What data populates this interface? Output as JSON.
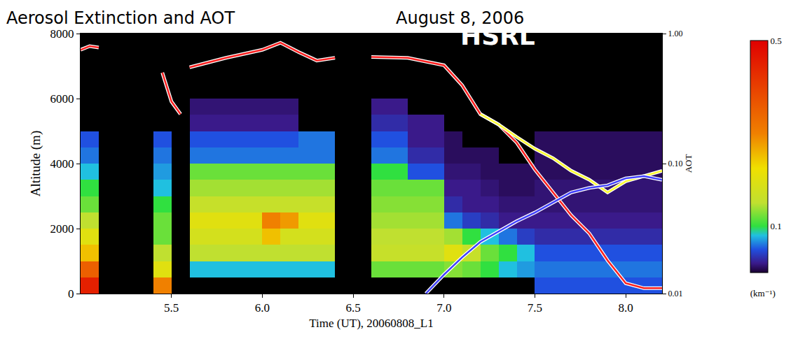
{
  "chart_data": {
    "type": "heatmap",
    "title": "Aerosol Extinction and AOT",
    "subtitle": "August 8, 2006",
    "annotations": [
      "HSRL"
    ],
    "x_label": "Time (UT), 20060808_L1",
    "y_label": "Altitude (m)",
    "y2_label": "AOT",
    "xlim": [
      5.0,
      8.2
    ],
    "xticks": [
      5.5,
      {
        "value": 6,
        "label": "6.0"
      },
      6.5,
      {
        "value": 7,
        "label": "7.0"
      },
      7.5,
      {
        "value": 8,
        "label": "8.0"
      }
    ],
    "ylim": [
      0,
      8000
    ],
    "yticks": [
      0,
      2000,
      4000,
      6000,
      8000
    ],
    "y2lim": [
      0.01,
      1
    ],
    "y2ticks": [
      0.01,
      {
        "value": 0.1,
        "label": "0.10"
      },
      {
        "value": 1,
        "label": "1.00"
      }
    ],
    "log": "y2",
    "grid": false,
    "heatmap": {
      "x": [
        5.05,
        5.15,
        5.25,
        5.35,
        5.45,
        5.55,
        5.65,
        5.75,
        5.85,
        5.95,
        6.05,
        6.15,
        6.25,
        6.35,
        6.45,
        6.55,
        6.65,
        6.75,
        6.85,
        6.95,
        7.05,
        7.15,
        7.25,
        7.35,
        7.45,
        7.55,
        7.65,
        7.75,
        7.85,
        7.95,
        8.05,
        8.15
      ],
      "y": [
        250,
        750,
        1250,
        1750,
        2250,
        2750,
        3250,
        3750,
        4250,
        4750,
        5250,
        5750,
        6250,
        6750,
        7250,
        7750
      ],
      "z": [
        [
          0.45,
          null,
          null,
          null,
          0.3,
          null,
          null,
          null,
          null,
          null,
          null,
          null,
          null,
          null,
          null,
          null,
          null,
          null,
          null,
          null,
          null,
          null,
          null,
          null,
          null,
          0.05,
          0.05,
          0.05,
          0.05,
          0.05,
          0.05,
          0.05
        ],
        [
          0.35,
          null,
          null,
          null,
          0.2,
          null,
          0.08,
          0.08,
          0.08,
          0.08,
          0.08,
          0.08,
          0.08,
          0.08,
          null,
          null,
          0.12,
          0.12,
          0.12,
          0.12,
          0.13,
          0.12,
          0.1,
          0.08,
          0.07,
          0.06,
          0.06,
          0.06,
          0.06,
          0.06,
          0.06,
          0.06
        ],
        [
          0.25,
          null,
          null,
          null,
          0.15,
          null,
          0.15,
          0.15,
          0.15,
          0.15,
          0.15,
          0.15,
          0.15,
          0.15,
          null,
          null,
          0.16,
          0.16,
          0.16,
          0.16,
          0.2,
          0.16,
          0.12,
          0.1,
          0.08,
          0.05,
          0.05,
          0.05,
          0.05,
          0.05,
          0.05,
          0.05
        ],
        [
          0.2,
          null,
          null,
          null,
          0.12,
          null,
          0.18,
          0.18,
          0.18,
          0.18,
          0.25,
          0.18,
          0.18,
          0.18,
          null,
          null,
          0.15,
          0.15,
          0.15,
          0.15,
          0.14,
          0.1,
          0.08,
          0.06,
          0.04,
          0.03,
          0.03,
          0.03,
          0.03,
          0.03,
          0.03,
          0.03
        ],
        [
          0.15,
          null,
          null,
          null,
          0.12,
          null,
          0.2,
          0.2,
          0.2,
          0.2,
          0.3,
          0.28,
          0.2,
          0.2,
          null,
          null,
          0.14,
          0.14,
          0.14,
          0.14,
          0.06,
          0.04,
          0.03,
          0.02,
          0.02,
          0.02,
          0.02,
          0.02,
          0.02,
          0.02,
          0.02,
          0.02
        ],
        [
          0.12,
          null,
          null,
          null,
          0.1,
          null,
          0.16,
          0.16,
          0.16,
          0.16,
          0.16,
          0.16,
          0.16,
          0.16,
          null,
          null,
          0.13,
          0.13,
          0.13,
          0.13,
          0.03,
          0.02,
          0.02,
          0.015,
          0.015,
          0.015,
          0.015,
          0.015,
          0.015,
          0.015,
          0.015,
          0.015
        ],
        [
          0.1,
          null,
          null,
          null,
          0.08,
          null,
          0.14,
          0.14,
          0.14,
          0.14,
          0.14,
          0.14,
          0.14,
          0.14,
          null,
          null,
          0.12,
          0.12,
          0.12,
          0.12,
          0.02,
          0.02,
          0.015,
          0.01,
          0.01,
          0.015,
          0.015,
          0.015,
          0.015,
          0.015,
          0.015,
          0.015
        ],
        [
          0.08,
          null,
          null,
          null,
          0.07,
          null,
          0.12,
          0.12,
          0.12,
          0.12,
          0.12,
          0.12,
          0.12,
          0.12,
          null,
          null,
          0.1,
          0.1,
          0.05,
          0.05,
          0.015,
          0.015,
          0.01,
          0.01,
          0.01,
          0.01,
          0.01,
          0.01,
          0.01,
          0.01,
          0.01,
          0.01
        ],
        [
          0.06,
          null,
          null,
          null,
          0.06,
          null,
          0.06,
          0.06,
          0.06,
          0.06,
          0.06,
          0.06,
          0.06,
          0.06,
          null,
          null,
          0.06,
          0.06,
          0.03,
          0.03,
          0.01,
          0.01,
          0.01,
          null,
          null,
          0.01,
          0.01,
          0.01,
          0.01,
          0.01,
          0.01,
          0.01
        ],
        [
          0.05,
          null,
          null,
          null,
          0.05,
          null,
          0.05,
          0.05,
          0.05,
          0.05,
          0.05,
          0.05,
          0.06,
          0.06,
          null,
          null,
          0.05,
          0.05,
          0.02,
          0.02,
          0.01,
          null,
          null,
          null,
          null,
          0.01,
          0.01,
          0.01,
          0.01,
          0.01,
          0.01,
          0.01
        ],
        [
          null,
          null,
          null,
          null,
          null,
          null,
          0.02,
          0.02,
          0.02,
          0.02,
          0.02,
          0.02,
          null,
          null,
          null,
          null,
          0.03,
          0.03,
          0.02,
          0.02,
          null,
          null,
          null,
          null,
          null,
          null,
          null,
          null,
          null,
          null,
          null,
          null
        ],
        [
          null,
          null,
          null,
          null,
          null,
          null,
          0.015,
          0.015,
          0.015,
          0.015,
          0.015,
          0.015,
          null,
          null,
          null,
          null,
          0.02,
          0.02,
          null,
          null,
          null,
          null,
          null,
          null,
          null,
          null,
          null,
          null,
          null,
          null,
          null,
          null
        ],
        [
          null,
          null,
          null,
          null,
          null,
          null,
          null,
          null,
          null,
          null,
          null,
          null,
          null,
          null,
          null,
          null,
          null,
          null,
          null,
          null,
          null,
          null,
          null,
          null,
          null,
          null,
          null,
          null,
          null,
          null,
          null,
          null
        ],
        [
          null,
          null,
          null,
          null,
          null,
          null,
          null,
          null,
          null,
          null,
          null,
          null,
          null,
          null,
          null,
          null,
          null,
          null,
          null,
          null,
          null,
          null,
          null,
          null,
          null,
          null,
          null,
          null,
          null,
          null,
          null,
          null
        ],
        [
          null,
          null,
          null,
          null,
          null,
          null,
          null,
          null,
          null,
          null,
          null,
          null,
          null,
          null,
          null,
          null,
          null,
          null,
          null,
          null,
          null,
          null,
          null,
          null,
          null,
          null,
          null,
          null,
          null,
          null,
          null,
          null
        ],
        [
          null,
          null,
          null,
          null,
          null,
          null,
          null,
          null,
          null,
          null,
          null,
          null,
          null,
          null,
          null,
          null,
          null,
          null,
          null,
          null,
          null,
          null,
          null,
          null,
          null,
          null,
          null,
          null,
          null,
          null,
          null,
          null
        ]
      ]
    },
    "colorbar": {
      "title": "(km⁻¹)",
      "range": [
        0,
        0.5
      ],
      "ticks": [
        0.1,
        0.5
      ]
    },
    "series": [
      {
        "type": "line",
        "axis": "y2",
        "color": "#ff2020",
        "x": [
          5.0,
          5.05,
          5.1,
          5.3,
          5.45,
          5.5,
          5.55,
          5.58,
          5.6,
          5.8,
          6.0,
          6.1,
          6.2,
          6.3,
          6.4,
          6.5,
          6.6,
          6.8,
          7.0,
          7.1,
          7.2,
          7.3,
          7.4,
          7.5,
          7.6,
          7.7,
          7.8,
          7.9,
          8.0,
          8.1,
          8.2
        ],
        "values": [
          0.75,
          0.8,
          0.78,
          null,
          0.5,
          0.3,
          0.24,
          null,
          0.55,
          0.65,
          0.75,
          0.85,
          0.72,
          0.62,
          0.65,
          null,
          0.66,
          0.65,
          0.57,
          0.4,
          0.24,
          0.2,
          0.145,
          0.09,
          0.06,
          0.04,
          0.029,
          0.018,
          0.012,
          0.011,
          0.011
        ]
      },
      {
        "type": "line",
        "axis": "y2",
        "color": "#ffff30",
        "x": [
          7.2,
          7.3,
          7.4,
          7.5,
          7.6,
          7.7,
          7.8,
          7.9,
          8.0,
          8.1,
          8.2
        ],
        "values": [
          0.24,
          0.2,
          0.16,
          0.13,
          0.11,
          0.088,
          0.075,
          0.06,
          0.073,
          0.08,
          0.088
        ]
      },
      {
        "type": "line",
        "axis": "y2",
        "color": "#4040ff",
        "x": [
          6.9,
          7.0,
          7.1,
          7.2,
          7.3,
          7.4,
          7.5,
          7.6,
          7.7,
          7.8,
          7.9,
          8.0,
          8.1,
          8.2
        ],
        "values": [
          0.01,
          0.014,
          0.019,
          0.025,
          0.03,
          0.036,
          0.042,
          0.05,
          0.06,
          0.065,
          0.068,
          0.077,
          0.08,
          0.075
        ]
      }
    ]
  }
}
